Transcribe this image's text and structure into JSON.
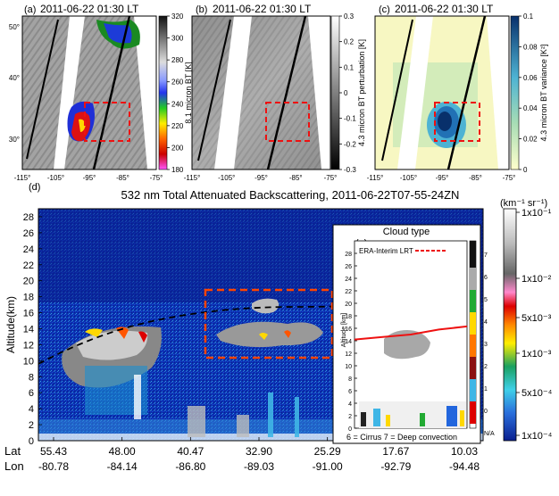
{
  "panels": [
    {
      "label": "(a)",
      "time": "2011-06-22 01:30 LT",
      "cbar_label": "8.1 micron BT [K]",
      "cbar_ticks": [
        "320",
        "300",
        "280",
        "260",
        "240",
        "220",
        "200",
        "180"
      ]
    },
    {
      "label": "(b)",
      "time": "2011-06-22 01:30 LT",
      "cbar_label": "4.3 micron BT perturbation [K]",
      "cbar_ticks": [
        "0.3",
        "0.2",
        "0.1",
        "0",
        "-0.1",
        "-0.2",
        "-0.3"
      ]
    },
    {
      "label": "(c)",
      "time": "2011-06-22 01:30 LT",
      "cbar_label": "4.3 micron BT variance [K²]",
      "cbar_ticks": [
        "0.1",
        "0.08",
        "0.06",
        "0.04",
        "0.02",
        "0"
      ]
    }
  ],
  "map_axes": {
    "lat_ticks": [
      "50°",
      "40°",
      "30°"
    ],
    "lon_ticks": [
      "-115°",
      "-105°",
      "-95°",
      "-85°",
      "-75°"
    ]
  },
  "curtain": {
    "label": "(d)",
    "title": "532 nm Total Attenuated Backscattering, 2011-06-22T07-55-24ZN",
    "ylabel": "Altitude(km)",
    "unit_label": "(km⁻¹ sr⁻¹)",
    "row_labels": [
      "Lat",
      "Lon"
    ]
  },
  "inset": {
    "label": "(e)",
    "title": "Cloud type",
    "legend": "ERA-Interim LRT",
    "ylabel": "Altitude [km]",
    "footnote": "6 = Cirrus  7 = Deep convection",
    "cbar_ticks": [
      "7",
      "6",
      "5",
      "4",
      "3",
      "2",
      "1",
      "0",
      "N/A"
    ]
  },
  "right_cbar": {
    "ticks": [
      "1x10⁻¹",
      "1x10⁻²",
      "5x10⁻³",
      "1x10⁻³",
      "5x10⁻⁴",
      "1x10⁻⁴"
    ]
  },
  "chart_data": [
    {
      "type": "heatmap",
      "title": "532 nm Total Attenuated Backscattering, 2011-06-22T07-55-24ZN",
      "ylabel": "Altitude(km)",
      "ylim": [
        0,
        29
      ],
      "yticks": [
        0,
        2,
        4,
        6,
        8,
        10,
        12,
        14,
        16,
        18,
        20,
        22,
        24,
        26,
        28
      ],
      "x_lat": [
        "55.43",
        "48.00",
        "40.47",
        "32.90",
        "25.29",
        "17.67",
        "10.03"
      ],
      "x_lon": [
        "-80.78",
        "-84.14",
        "-86.80",
        "-89.03",
        "-91.00",
        "-92.79",
        "-94.48"
      ],
      "colorbar_ticks": [
        "1x10⁻¹",
        "1x10⁻²",
        "5x10⁻³",
        "1x10⁻³",
        "5x10⁻⁴",
        "1x10⁻⁴"
      ],
      "tropopause_dashed_km": [
        10.3,
        12.5,
        14.4,
        15.0,
        15.3,
        15.6,
        16.1,
        16.4,
        16.5
      ]
    },
    {
      "type": "line",
      "title": "Cloud type",
      "series": [
        {
          "name": "ERA-Interim LRT",
          "x": [
            0,
            0.25,
            0.5,
            0.75,
            1.0
          ],
          "y": [
            14.2,
            14.6,
            15.0,
            15.8,
            16.3
          ]
        }
      ],
      "ylabel": "Altitude [km]",
      "ylim": [
        0,
        30
      ],
      "yticks": [
        0,
        2,
        4,
        6,
        8,
        10,
        12,
        14,
        16,
        18,
        20,
        22,
        24,
        26,
        28
      ],
      "cloud_type_ticks": [
        "7",
        "6",
        "5",
        "4",
        "3",
        "2",
        "1",
        "0",
        "N/A"
      ]
    }
  ]
}
